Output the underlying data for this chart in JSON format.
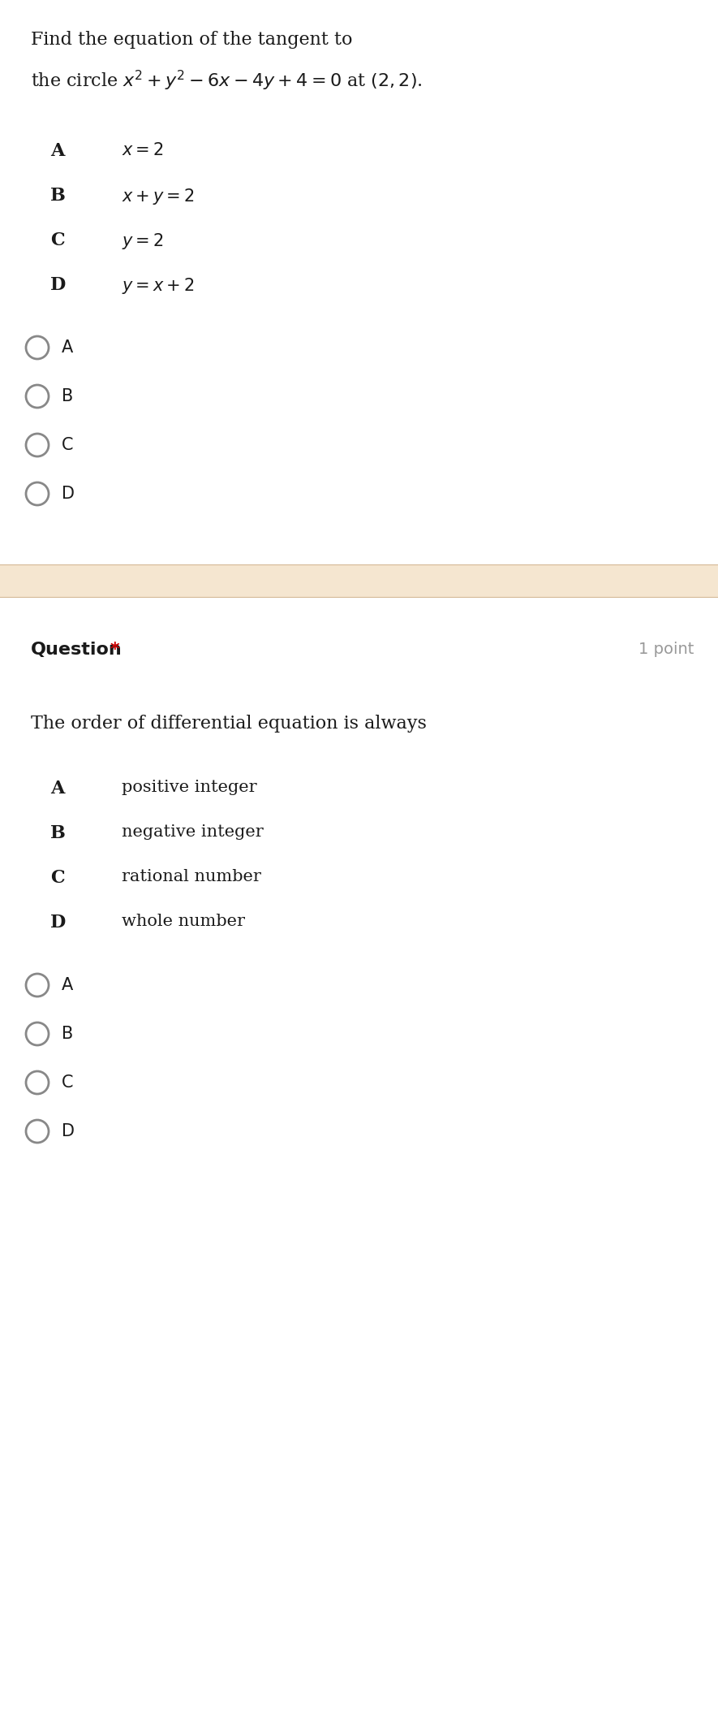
{
  "bg_color": "#ffffff",
  "separator_color": "#f5e6d0",
  "separator_line_color": "#d4b896",
  "q1": {
    "question_line1": "Find the equation of the tangent to",
    "question_line2": "the circle $x^2+y^2-6x-4y+4=0$ at $(2,2)$.",
    "options": [
      {
        "label": "A",
        "text": "$x=2$"
      },
      {
        "label": "B",
        "text": "$x+y=2$"
      },
      {
        "label": "C",
        "text": "$y=2$"
      },
      {
        "label": "D",
        "text": "$y=x+2$"
      }
    ],
    "radio_labels": [
      "A",
      "B",
      "C",
      "D"
    ]
  },
  "q2": {
    "header": "Question",
    "star": "*",
    "points": "1 point",
    "question_line1": "The order of differential equation is always",
    "options": [
      {
        "label": "A",
        "text": "positive integer"
      },
      {
        "label": "B",
        "text": "negative integer"
      },
      {
        "label": "C",
        "text": "rational number"
      },
      {
        "label": "D",
        "text": "whole number"
      }
    ],
    "radio_labels": [
      "A",
      "B",
      "C",
      "D"
    ]
  },
  "text_color": "#1a1a1a",
  "label_color": "#1a1a1a",
  "radio_color": "#888888",
  "question_header_color": "#1a1a1a",
  "star_color": "#cc0000",
  "points_color": "#999999",
  "font_size_question": 16,
  "font_size_options": 15,
  "font_size_radio": 15,
  "font_size_header": 16,
  "font_size_points": 14
}
